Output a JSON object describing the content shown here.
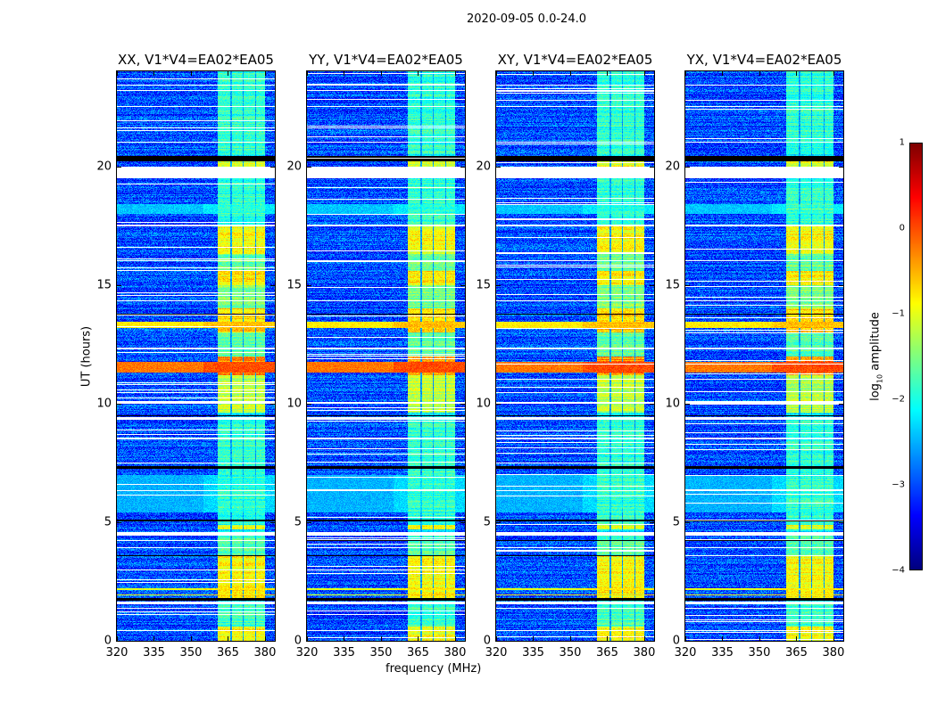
{
  "suptitle": "2020-09-05 0.0-24.0",
  "colorbar": {
    "label_prefix": "log",
    "label_sub": "10",
    "label_suffix": " amplitude",
    "ticks": [
      "1",
      "0",
      "−1",
      "−2",
      "−3",
      "−4"
    ],
    "range": [
      -4,
      1
    ],
    "colormap": "jet"
  },
  "chart_data": {
    "type": "heatmap",
    "title": "2020-09-05 0.0-24.0",
    "xlabel": "frequency (MHz)",
    "ylabel": "UT (hours)",
    "xlim": [
      320,
      384
    ],
    "ylim": [
      0,
      24
    ],
    "x_ticks": [
      320,
      335,
      350,
      365,
      380
    ],
    "y_ticks": [
      0,
      5,
      10,
      15,
      20
    ],
    "value_label": "log10 amplitude",
    "value_range": [
      -4,
      1
    ],
    "panels": [
      {
        "title": "XX, V1*V4=EA02*EA05",
        "seed": 1
      },
      {
        "title": "YY, V1*V4=EA02*EA05",
        "seed": 2
      },
      {
        "title": "XY, V1*V4=EA02*EA05",
        "seed": 3
      },
      {
        "title": "YX, V1*V4=EA02*EA05",
        "seed": 4
      }
    ],
    "background_level": -3.0,
    "rfi_subbands_mhz": [
      [
        361,
        366
      ],
      [
        366.5,
        371
      ],
      [
        371.5,
        376
      ],
      [
        376.5,
        380
      ]
    ],
    "rfi_level_by_ut": [
      {
        "ut": [
          0,
          0.6
        ],
        "level": -0.9
      },
      {
        "ut": [
          0.6,
          1.6
        ],
        "level": -1.8
      },
      {
        "ut": [
          1.8,
          3.6
        ],
        "level": -0.9
      },
      {
        "ut": [
          3.6,
          4.5
        ],
        "level": -1.7
      },
      {
        "ut": [
          4.7,
          4.9
        ],
        "level": -1.0
      },
      {
        "ut": [
          4.9,
          9.3
        ],
        "level": -1.9
      },
      {
        "ut": [
          9.6,
          11.2
        ],
        "level": -1.2
      },
      {
        "ut": [
          11.2,
          12.0
        ],
        "level": -0.3
      },
      {
        "ut": [
          12.0,
          13.0
        ],
        "level": -1.7
      },
      {
        "ut": [
          13.0,
          14.0
        ],
        "level": -0.7
      },
      {
        "ut": [
          14.0,
          15.5
        ],
        "level": -1.5
      },
      {
        "ut": [
          15.0,
          15.6
        ],
        "level": -0.8
      },
      {
        "ut": [
          15.6,
          16.3
        ],
        "level": -1.6
      },
      {
        "ut": [
          16.3,
          17.5
        ],
        "level": -0.9
      },
      {
        "ut": [
          17.5,
          19.5
        ],
        "level": -1.9
      },
      {
        "ut": [
          20.0,
          20.2
        ],
        "level": -1.0
      },
      {
        "ut": [
          20.5,
          24
        ],
        "level": -1.9
      }
    ],
    "broadband_rows": [
      {
        "ut": [
          11.3,
          11.75
        ],
        "level": -0.2
      },
      {
        "ut": [
          13.2,
          13.45
        ],
        "level": -0.8
      },
      {
        "ut": [
          2.15,
          2.22
        ],
        "level": -1.0
      },
      {
        "ut": [
          1.9,
          1.95
        ],
        "level": -0.9
      },
      {
        "ut": [
          18.0,
          18.4
        ],
        "level": -2.4
      },
      {
        "ut": [
          5.4,
          7.0
        ],
        "level": -2.5
      }
    ],
    "flagged_white_ut": [
      [
        19.5,
        20.0
      ],
      [
        4.45,
        4.6
      ],
      [
        9.3,
        9.42
      ],
      [
        1.55,
        1.65
      ],
      [
        17.45,
        17.55
      ],
      [
        0.4,
        0.45
      ],
      [
        8.5,
        8.55
      ],
      [
        10.0,
        10.05
      ],
      [
        22.5,
        22.55
      ],
      [
        23.4,
        23.45
      ],
      [
        21.0,
        21.05
      ],
      [
        16.0,
        16.05
      ],
      [
        14.3,
        14.35
      ],
      [
        12.3,
        12.35
      ],
      [
        3.9,
        3.95
      ],
      [
        6.3,
        6.35
      ]
    ],
    "flagged_black_ut": [
      [
        20.2,
        20.45
      ],
      [
        1.7,
        1.8
      ],
      [
        9.45,
        9.52
      ],
      [
        5.05,
        5.12
      ],
      [
        7.25,
        7.35
      ],
      [
        3.55,
        3.6
      ],
      [
        13.75,
        13.8
      ],
      [
        4.2,
        4.25
      ]
    ]
  }
}
